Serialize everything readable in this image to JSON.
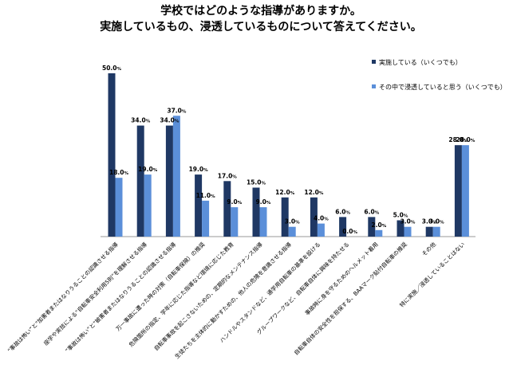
{
  "chart_data": {
    "type": "bar",
    "title_lines": [
      "学校ではどのような指導がありますか。",
      "実施しているもの、浸透しているものについて答えてください。"
    ],
    "unit": "%",
    "ylim": [
      0,
      50
    ],
    "grid": false,
    "legend_position": "top-right",
    "colors": [
      "#1f3864",
      "#5b8fd9"
    ],
    "series": [
      {
        "name": "実施している（いくつでも）",
        "values": [
          50.0,
          34.0,
          34.0,
          19.0,
          17.0,
          15.0,
          12.0,
          12.0,
          6.0,
          6.0,
          5.0,
          3.0,
          28.0
        ]
      },
      {
        "name": "その中で浸透していると思う（いくつでも）",
        "values": [
          18.0,
          19.0,
          37.0,
          11.0,
          9.0,
          9.0,
          3.0,
          4.0,
          0.0,
          2.0,
          3.0,
          3.0,
          28.0
        ]
      }
    ],
    "categories": [
      "“事故は怖い”と\"加害者またはなりうることの認識させる指導",
      "座学や実技による“自転車安全利用5則”を理解させる指導",
      "“事故は怖い”と\"被害者またはなりうることの認識させる指導",
      "万一事故に遭った時の対策（自転車保険）の推奨",
      "危険箇所の指定、学年に応じた指導など環境に応じた教育",
      "自転車事故を起こさないための、定期的なメンテナンス指導",
      "生徒たちを主体的に動かすための、他人の危険を意識させる指導",
      "ハンドルやスタンドなど、通学用自転車の基準を設ける",
      "グループワークなど、自転車自体に興味を持たせる",
      "事故時に身を守るためのヘルメット着用",
      "自転車自体の安全性を担保する、BAAマーク貼付自転車の推奨",
      "その他",
      "特に実施／浸透していることはない"
    ]
  }
}
